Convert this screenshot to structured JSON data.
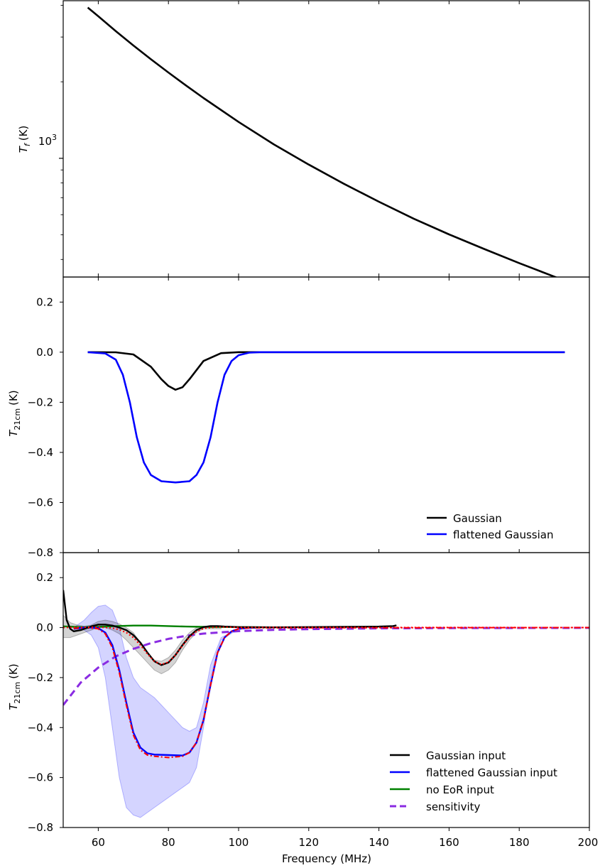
{
  "chart_data": [
    {
      "type": "line",
      "ylabel": "T_f (K)",
      "ylabel_main": "T",
      "ylabel_sub": "f",
      "ylabel_unit": "(K)",
      "yscale": "log",
      "xlim": [
        50,
        200
      ],
      "ylim_log10": [
        2.533,
        3.62
      ],
      "ytick_labels": [
        {
          "base": "10",
          "exp": "3",
          "value": 1000
        }
      ],
      "series": [
        {
          "color": "#000000",
          "x": [
            57,
            60,
            65,
            70,
            75,
            80,
            85,
            90,
            100,
            110,
            120,
            130,
            140,
            150,
            160,
            170,
            180,
            193
          ],
          "y": [
            3920,
            3620,
            3163,
            2780,
            2453,
            2175,
            1935,
            1727,
            1390,
            1136,
            945,
            794,
            675,
            578,
            502,
            440,
            387,
            330
          ]
        }
      ]
    },
    {
      "type": "line",
      "ylabel": "T_21cm (K)",
      "ylabel_main": "T",
      "ylabel_sub": "21cm",
      "ylabel_unit": "(K)",
      "xlim": [
        50,
        200
      ],
      "ylim": [
        -0.8,
        0.3
      ],
      "yticks": [
        "0.2",
        "0.0",
        "−0.2",
        "−0.4",
        "−0.6",
        "−0.8"
      ],
      "legend": {
        "placement": "lower-right",
        "entries": [
          {
            "label": "Gaussian",
            "color": "#000000",
            "style": "solid"
          },
          {
            "label": "flattened Gaussian",
            "color": "#0000ff",
            "style": "solid"
          }
        ]
      },
      "series": [
        {
          "name": "Gaussian",
          "color": "#000000",
          "x": [
            57,
            65,
            70,
            75,
            78,
            80,
            82,
            84,
            86,
            90,
            95,
            100,
            193
          ],
          "y": [
            0.0,
            -0.0005,
            -0.009,
            -0.058,
            -0.108,
            -0.135,
            -0.15,
            -0.14,
            -0.108,
            -0.035,
            -0.004,
            0.0,
            0.0
          ]
        },
        {
          "name": "flattened Gaussian",
          "color": "#0000ff",
          "x": [
            57,
            62,
            65,
            67,
            69,
            71,
            73,
            75,
            78,
            82,
            86,
            88,
            90,
            92,
            94,
            96,
            98,
            100,
            103,
            106,
            193
          ],
          "y": [
            0.0,
            -0.005,
            -0.03,
            -0.09,
            -0.2,
            -0.34,
            -0.44,
            -0.49,
            -0.515,
            -0.52,
            -0.515,
            -0.49,
            -0.44,
            -0.34,
            -0.2,
            -0.09,
            -0.035,
            -0.012,
            -0.002,
            0.0,
            0.0
          ]
        }
      ]
    },
    {
      "type": "line",
      "ylabel": "T_21cm (K)",
      "ylabel_main": "T",
      "ylabel_sub": "21cm",
      "ylabel_unit": "(K)",
      "xlabel": "Frequency (MHz)",
      "xlim": [
        50,
        200
      ],
      "ylim": [
        -0.8,
        0.3
      ],
      "yticks": [
        "0.2",
        "0.0",
        "−0.2",
        "−0.4",
        "−0.6",
        "−0.8"
      ],
      "xticks": [
        "60",
        "80",
        "100",
        "120",
        "140",
        "160",
        "180",
        "200"
      ],
      "legend": {
        "placement": "lower-right",
        "entries": [
          {
            "label": "Gaussian input",
            "color": "#000000",
            "style": "solid"
          },
          {
            "label": "flattened Gaussian input",
            "color": "#0000ff",
            "style": "solid"
          },
          {
            "label": "no EoR input",
            "color": "#008000",
            "style": "solid"
          },
          {
            "label": "sensitivity",
            "color": "#8a2be2",
            "style": "dashed"
          }
        ]
      },
      "bands": [
        {
          "color": "#0000ff",
          "opacity": 0.17,
          "x": [
            53,
            56,
            58,
            60,
            62,
            64,
            66,
            68,
            70,
            72,
            74,
            76,
            78,
            80,
            82,
            84,
            86,
            88,
            90,
            92,
            95,
            100
          ],
          "upper": [
            0.0,
            0.03,
            0.06,
            0.085,
            0.09,
            0.07,
            0.0,
            -0.12,
            -0.2,
            -0.24,
            -0.26,
            -0.28,
            -0.31,
            -0.34,
            -0.37,
            -0.4,
            -0.415,
            -0.4,
            -0.3,
            -0.15,
            -0.04,
            -0.005
          ],
          "lower": [
            0.0,
            -0.01,
            -0.03,
            -0.08,
            -0.2,
            -0.4,
            -0.6,
            -0.72,
            -0.75,
            -0.76,
            -0.74,
            -0.72,
            -0.7,
            -0.68,
            -0.66,
            -0.64,
            -0.62,
            -0.56,
            -0.4,
            -0.2,
            -0.05,
            -0.005
          ]
        },
        {
          "color": "#000000",
          "opacity": 0.17,
          "x": [
            50,
            52,
            54,
            56,
            58,
            60,
            62,
            64,
            66,
            68,
            70,
            72,
            74,
            76,
            78,
            80,
            82,
            84,
            86,
            88,
            90,
            95
          ],
          "upper": [
            0.05,
            0.02,
            0.01,
            0.005,
            0.01,
            0.025,
            0.03,
            0.025,
            0.015,
            0.0,
            -0.02,
            -0.06,
            -0.1,
            -0.13,
            -0.135,
            -0.12,
            -0.09,
            -0.05,
            -0.02,
            0.0,
            0.005,
            0.005
          ],
          "lower": [
            -0.04,
            -0.04,
            -0.03,
            -0.02,
            -0.01,
            0.0,
            0.0,
            -0.01,
            -0.025,
            -0.05,
            -0.08,
            -0.11,
            -0.14,
            -0.17,
            -0.185,
            -0.17,
            -0.14,
            -0.09,
            -0.05,
            -0.02,
            -0.005,
            -0.005
          ]
        }
      ],
      "series": [
        {
          "name": "sensitivity",
          "color": "#8a2be2",
          "style": "dashed",
          "x": [
            50,
            55,
            60,
            65,
            70,
            75,
            80,
            85,
            90,
            100,
            110,
            120,
            140,
            160,
            200
          ],
          "y": [
            -0.31,
            -0.22,
            -0.16,
            -0.115,
            -0.085,
            -0.062,
            -0.045,
            -0.033,
            -0.024,
            -0.014,
            -0.009,
            -0.006,
            -0.003,
            -0.002,
            -0.001
          ]
        },
        {
          "name": "no EoR input",
          "color": "#008000",
          "x": [
            50,
            55,
            60,
            65,
            70,
            75,
            80,
            85,
            90,
            100,
            110
          ],
          "y": [
            0.005,
            0.002,
            0.003,
            0.006,
            0.008,
            0.008,
            0.006,
            0.004,
            0.003,
            0.002,
            0.001
          ]
        },
        {
          "name": "flattened Gaussian input",
          "color": "#0000ff",
          "x": [
            53,
            56,
            58,
            60,
            62,
            64,
            66,
            68,
            70,
            72,
            74,
            76,
            80,
            84,
            86,
            88,
            90,
            92,
            94,
            96,
            98,
            100,
            103,
            106
          ],
          "y": [
            -0.005,
            0.0,
            0.0,
            -0.002,
            -0.02,
            -0.07,
            -0.17,
            -0.3,
            -0.42,
            -0.48,
            -0.503,
            -0.508,
            -0.51,
            -0.512,
            -0.5,
            -0.46,
            -0.37,
            -0.23,
            -0.1,
            -0.04,
            -0.015,
            -0.005,
            -0.001,
            0.0
          ]
        },
        {
          "name": "flattened Gaussian model",
          "color": "#ff0000",
          "style": "dashdot",
          "x": [
            53,
            56,
            58,
            60,
            62,
            64,
            66,
            68,
            70,
            72,
            74,
            76,
            80,
            84,
            86,
            88,
            90,
            92,
            94,
            96,
            98,
            100,
            103,
            200
          ],
          "y": [
            -0.003,
            -0.001,
            -0.002,
            -0.005,
            -0.025,
            -0.08,
            -0.18,
            -0.31,
            -0.43,
            -0.49,
            -0.51,
            -0.515,
            -0.52,
            -0.515,
            -0.5,
            -0.46,
            -0.37,
            -0.23,
            -0.1,
            -0.04,
            -0.015,
            -0.005,
            -0.001,
            0.0
          ]
        },
        {
          "name": "Gaussian input",
          "color": "#000000",
          "x": [
            50,
            51,
            52,
            53,
            55,
            58,
            60,
            62,
            64,
            66,
            68,
            70,
            72,
            74,
            76,
            78,
            80,
            82,
            84,
            86,
            88,
            90,
            92,
            94,
            96,
            100,
            110,
            120,
            130,
            140,
            144,
            145
          ],
          "y": [
            0.15,
            0.03,
            -0.005,
            -0.015,
            -0.01,
            0.005,
            0.012,
            0.012,
            0.008,
            0.0,
            -0.01,
            -0.03,
            -0.06,
            -0.1,
            -0.135,
            -0.15,
            -0.14,
            -0.11,
            -0.07,
            -0.035,
            -0.01,
            0.002,
            0.006,
            0.006,
            0.004,
            0.002,
            0.001,
            0.002,
            0.003,
            0.004,
            0.006,
            0.009
          ]
        },
        {
          "name": "Gaussian model",
          "color": "#ff0000",
          "style": "dotted",
          "x": [
            50,
            60,
            64,
            66,
            68,
            70,
            72,
            74,
            76,
            78,
            80,
            82,
            84,
            86,
            88,
            90,
            92,
            95,
            100,
            200
          ],
          "y": [
            0.0,
            0.002,
            -0.002,
            -0.008,
            -0.02,
            -0.04,
            -0.07,
            -0.105,
            -0.135,
            -0.148,
            -0.138,
            -0.11,
            -0.072,
            -0.038,
            -0.015,
            -0.004,
            0.0,
            0.002,
            0.001,
            0.0
          ]
        }
      ]
    }
  ]
}
